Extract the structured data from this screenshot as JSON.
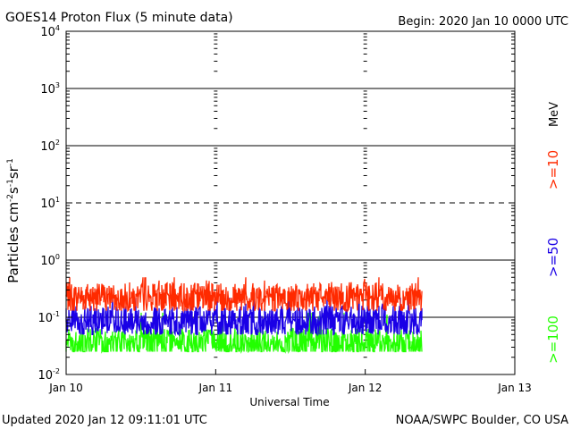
{
  "chart_data": {
    "type": "line",
    "title": "GOES14 Proton Flux (5 minute data)",
    "begin_label": "Begin: 2020 Jan 10 0000 UTC",
    "xlabel": "Universal Time",
    "ylabel_parts": {
      "base": "Particles cm",
      "e1": "-2",
      "mid1": "s",
      "e2": "-1",
      "mid2": "sr",
      "e3": "-1"
    },
    "yscale": "log",
    "ylim": [
      0.01,
      10000
    ],
    "xlim_days": [
      0,
      3
    ],
    "x_tick_labels": [
      "Jan 10",
      "Jan 11",
      "Jan 12",
      "Jan 13"
    ],
    "y_ticks": [
      {
        "base": "10",
        "exp": "-2",
        "value": 0.01
      },
      {
        "base": "10",
        "exp": "-1",
        "value": 0.1
      },
      {
        "base": "10",
        "exp": "0",
        "value": 1
      },
      {
        "base": "10",
        "exp": "1",
        "value": 10
      },
      {
        "base": "10",
        "exp": "2",
        "value": 100
      },
      {
        "base": "10",
        "exp": "3",
        "value": 1000
      },
      {
        "base": "10",
        "exp": "4",
        "value": 10000
      }
    ],
    "reference_lines": [
      {
        "value": 0.1,
        "style": "solid"
      },
      {
        "value": 1,
        "style": "solid"
      },
      {
        "value": 10,
        "style": "dashed"
      },
      {
        "value": 100,
        "style": "solid"
      },
      {
        "value": 1000,
        "style": "solid"
      }
    ],
    "data_end_day": 2.38,
    "series": [
      {
        "name": ">=10 MeV",
        "label": ">=10",
        "color": "#ff2a00",
        "base": 0.22,
        "low": 0.13,
        "high": 0.5
      },
      {
        "name": ">=50 MeV",
        "label": ">=50",
        "color": "#1a00e6",
        "base": 0.085,
        "low": 0.05,
        "high": 0.22
      },
      {
        "name": ">=100 MeV",
        "label": ">=100",
        "color": "#22ff00",
        "base": 0.035,
        "low": 0.025,
        "high": 0.12
      }
    ],
    "legend_unit": "MeV"
  },
  "footer": {
    "updated": "Updated 2020 Jan 12 09:11:01 UTC",
    "credit": "NOAA/SWPC Boulder, CO USA"
  }
}
